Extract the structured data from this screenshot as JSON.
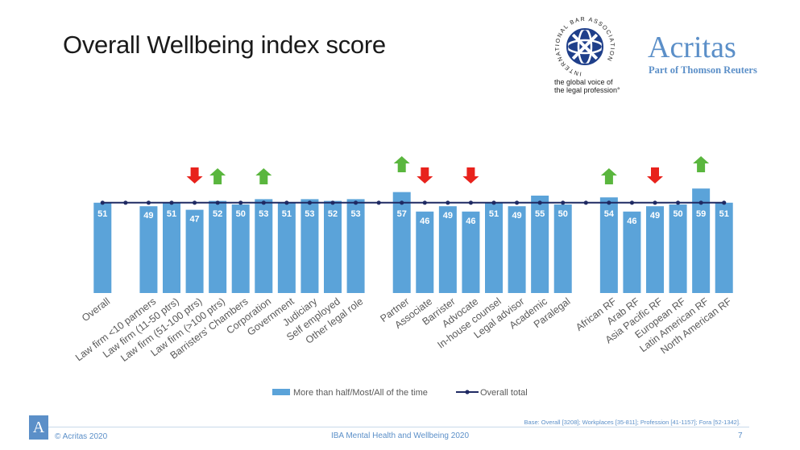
{
  "slide": {
    "title": "Overall Wellbeing index score",
    "logos": {
      "iba_ring_text": "INTERNATIONAL BAR ASSOCIATION",
      "iba_tagline_1": "the global voice of",
      "iba_tagline_2": "the legal profession°",
      "acritas_name": "Acritas",
      "acritas_subtitle": "Part of Thomson Reuters"
    },
    "footer": {
      "logo_letter": "A",
      "copyright": "© Acritas 2020",
      "report": "IBA Mental Health and Wellbeing 2020",
      "page": "7",
      "base_note": "Base: Overall [3208]; Workplaces [35-811]; Profession [41-1157]; Fora [52-1342]."
    },
    "colors": {
      "bar": "#5ba3d9",
      "line": "#1f2a63",
      "arrow_up": "#5ab63e",
      "arrow_down": "#e8221c",
      "brand": "#5b8fc8",
      "iba_navy": "#1f3f8a"
    }
  },
  "chart_data": {
    "type": "bar",
    "title": "Overall Wellbeing index score",
    "categories": [
      "Overall",
      "",
      "Law firm <10 partners",
      "Law firm (11-50 ptrs)",
      "Law firm (51-100 ptrs)",
      "Law firm (>100 ptrs)",
      "Barristers' Chambers",
      "Corporation",
      "Government",
      "Judiciary",
      "Self employed",
      "Other legal role",
      "",
      "Partner",
      "Associate",
      "Barrister",
      "Advocate",
      "In-house counsel",
      "Legal advisor",
      "Academic",
      "Paralegal",
      "",
      "African RF",
      "Arab RF",
      "Asia Pacific RF",
      "European RF",
      "Latin American RF",
      "North American RF"
    ],
    "series": [
      {
        "name": "More than half/Most/All of the time",
        "type": "bar",
        "values": [
          51,
          null,
          49,
          51,
          47,
          52,
          50,
          53,
          51,
          53,
          52,
          53,
          null,
          57,
          46,
          49,
          46,
          51,
          49,
          55,
          50,
          null,
          54,
          46,
          49,
          50,
          59,
          51
        ]
      },
      {
        "name": "Overall total",
        "type": "line",
        "values": [
          51,
          51,
          51,
          51,
          51,
          51,
          51,
          51,
          51,
          51,
          51,
          51,
          51,
          51,
          51,
          51,
          51,
          51,
          51,
          51,
          51,
          51,
          51,
          51,
          51,
          51,
          51,
          51
        ]
      }
    ],
    "significance": [
      null,
      null,
      null,
      null,
      "down",
      "up",
      null,
      "up",
      null,
      null,
      null,
      null,
      null,
      "up",
      "down",
      null,
      "down",
      null,
      null,
      null,
      null,
      null,
      "up",
      null,
      "down",
      null,
      "up",
      null
    ],
    "ylim": [
      0,
      62
    ],
    "grid": false,
    "legend_position": "bottom"
  }
}
